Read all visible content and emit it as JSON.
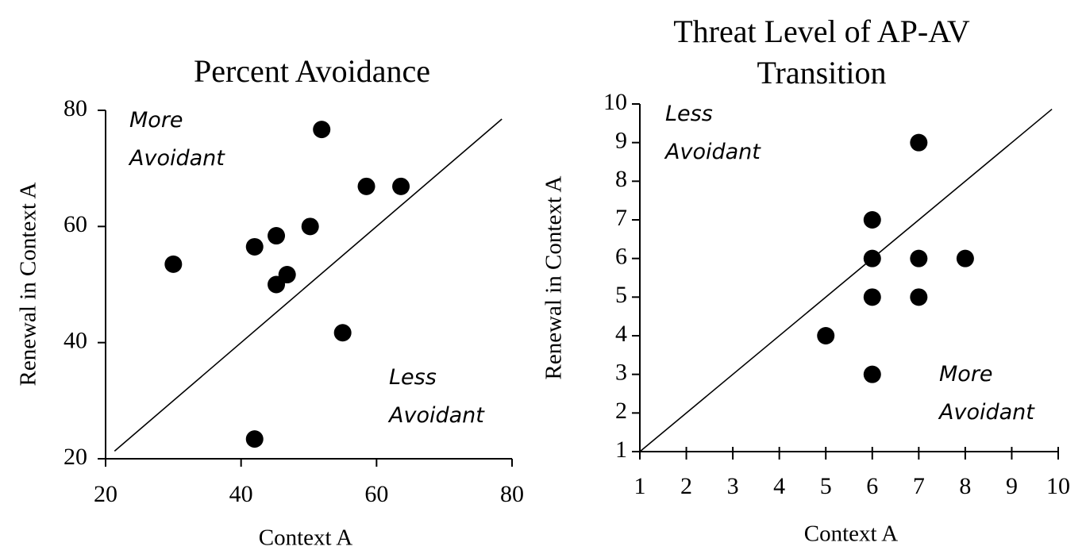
{
  "chart_data": [
    {
      "type": "scatter",
      "title": "Percent Avoidance",
      "x_label": "Context A",
      "y_label": "Renewal in Context A",
      "x": [
        30,
        42,
        45.2,
        50.2,
        51.9,
        58.5,
        63.6,
        46.8,
        45.2,
        55,
        42
      ],
      "values": [
        53.5,
        56.5,
        58.4,
        60,
        76.7,
        66.9,
        66.9,
        51.7,
        50,
        41.7,
        23.4
      ],
      "color": "#000000",
      "xlim": [
        20,
        80
      ],
      "ylim": [
        20,
        80
      ],
      "xticks": [
        20,
        40,
        60,
        80
      ],
      "yticks": [
        20,
        40,
        60,
        80
      ],
      "grid": false,
      "diagonal": true,
      "annotations": [
        "More Avoidant",
        "Less Avoidant"
      ]
    },
    {
      "type": "scatter",
      "title": "Threat Level of AP-AV Transition",
      "x_label": "Context A",
      "y_label": "Renewal in Context A",
      "x": [
        7,
        6,
        6,
        7,
        8,
        6,
        7,
        5,
        6
      ],
      "values": [
        9,
        7,
        6,
        6,
        6,
        5,
        5,
        4,
        3
      ],
      "color": "#000000",
      "xlim": [
        1,
        10
      ],
      "ylim": [
        1,
        10
      ],
      "xticks": [
        1,
        2,
        3,
        4,
        5,
        6,
        7,
        8,
        9,
        10
      ],
      "yticks": [
        1,
        2,
        3,
        4,
        5,
        6,
        7,
        8,
        9,
        10
      ],
      "grid": false,
      "diagonal": true,
      "annotations": [
        "Less Avoidant",
        "More Avoidant"
      ]
    }
  ]
}
